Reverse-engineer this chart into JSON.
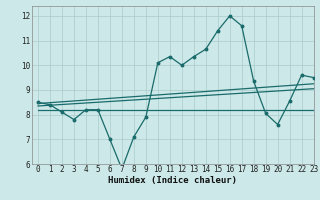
{
  "xlabel": "Humidex (Indice chaleur)",
  "bg_color": "#cce8e8",
  "grid_color": "#aacccc",
  "line_color": "#1a6b6b",
  "xlim": [
    -0.5,
    23
  ],
  "ylim": [
    6,
    12.4
  ],
  "x_ticks": [
    0,
    1,
    2,
    3,
    4,
    5,
    6,
    7,
    8,
    9,
    10,
    11,
    12,
    13,
    14,
    15,
    16,
    17,
    18,
    19,
    20,
    21,
    22,
    23
  ],
  "y_ticks": [
    6,
    7,
    8,
    9,
    10,
    11,
    12
  ],
  "main_line_x": [
    0,
    1,
    2,
    3,
    4,
    5,
    6,
    7,
    8,
    9,
    10,
    11,
    12,
    13,
    14,
    15,
    16,
    17,
    18,
    19,
    20,
    21,
    22,
    23
  ],
  "main_line_y": [
    8.5,
    8.4,
    8.1,
    7.8,
    8.2,
    8.2,
    7.0,
    5.8,
    7.1,
    7.9,
    10.1,
    10.35,
    10.0,
    10.35,
    10.65,
    11.4,
    12.0,
    11.6,
    9.35,
    8.05,
    7.6,
    8.55,
    9.6,
    9.5
  ],
  "reg_line1_x": [
    0,
    23
  ],
  "reg_line1_y": [
    8.45,
    9.25
  ],
  "reg_line2_x": [
    0,
    23
  ],
  "reg_line2_y": [
    8.35,
    9.05
  ],
  "reg_line3_x": [
    0,
    23
  ],
  "reg_line3_y": [
    8.2,
    8.2
  ],
  "font_size_label": 6.5,
  "font_size_tick": 5.5
}
